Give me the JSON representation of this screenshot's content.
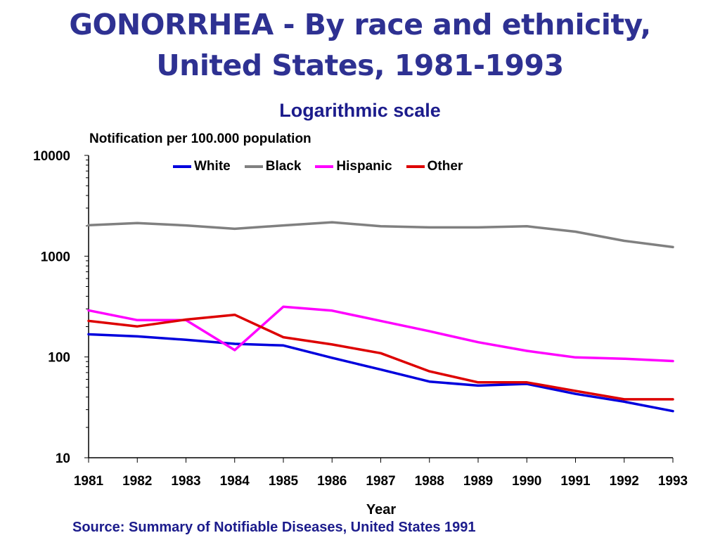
{
  "slide": {
    "title": "GONORRHEA - By race and ethnicity, United States, 1981-1993",
    "source": "Source: Summary of Notifiable Diseases, United States 1991"
  },
  "chart_data": {
    "type": "line",
    "title": "Logarithmic scale",
    "ylabel": "Notification per 100.000 population",
    "xlabel": "Year",
    "y_scale": "log",
    "ylim": [
      10,
      10000
    ],
    "y_ticks": [
      "10",
      "100",
      "1000",
      "10000"
    ],
    "x": [
      "1981",
      "1982",
      "1983",
      "1984",
      "1985",
      "1986",
      "1987",
      "1988",
      "1989",
      "1990",
      "1991",
      "1992",
      "1993"
    ],
    "legend_position": "top",
    "grid": false,
    "series": [
      {
        "name": "White",
        "color": "#0000dd",
        "values": [
          168,
          160,
          148,
          135,
          130,
          98,
          75,
          57,
          52,
          54,
          43,
          36,
          29
        ]
      },
      {
        "name": "Black",
        "color": "#808080",
        "values": [
          2030,
          2130,
          2020,
          1870,
          2020,
          2170,
          1980,
          1930,
          1930,
          1980,
          1750,
          1420,
          1230
        ]
      },
      {
        "name": "Hispanic",
        "color": "#ff00ff",
        "values": [
          290,
          232,
          232,
          117,
          315,
          288,
          228,
          180,
          140,
          115,
          99,
          96,
          91
        ]
      },
      {
        "name": "Other",
        "color": "#dd0000",
        "values": [
          228,
          201,
          235,
          262,
          157,
          133,
          109,
          72,
          56,
          56,
          46,
          38,
          38
        ]
      }
    ]
  }
}
